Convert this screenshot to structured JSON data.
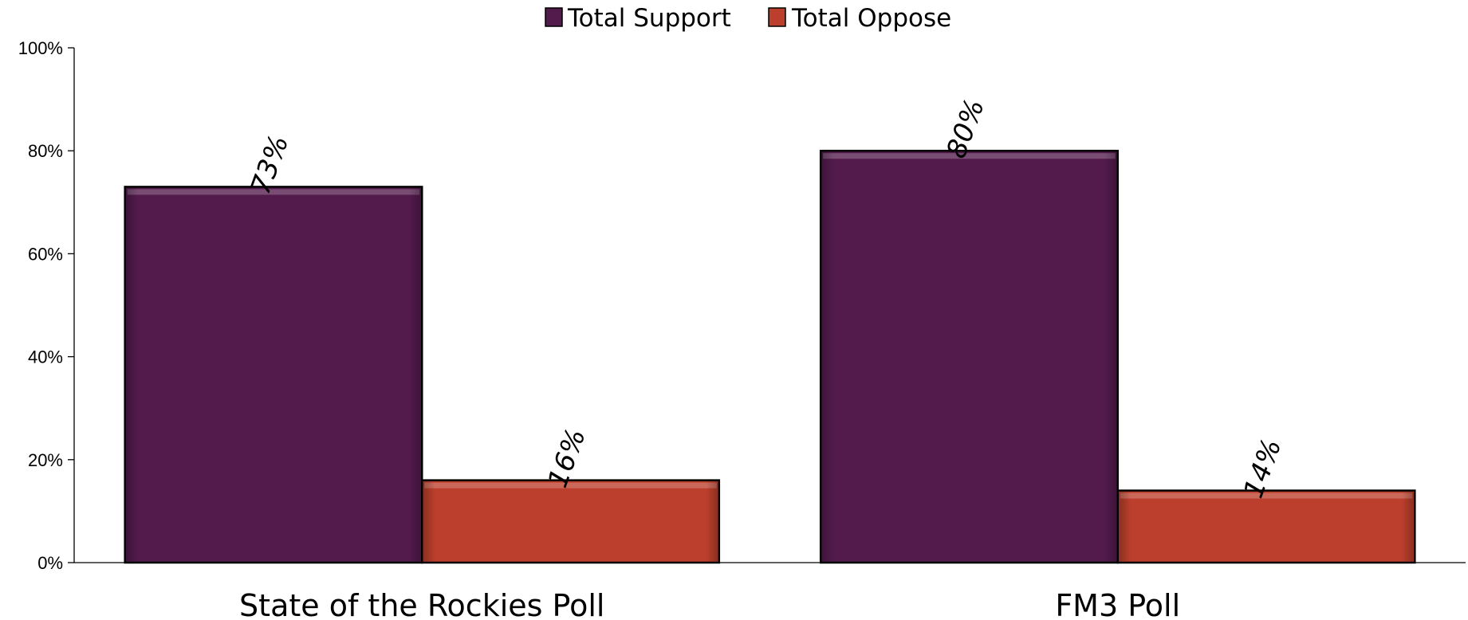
{
  "chart_data": {
    "type": "bar",
    "categories": [
      "State of the Rockies Poll",
      "FM3 Poll"
    ],
    "series": [
      {
        "name": "Total Support",
        "values": [
          73,
          80
        ],
        "color": "#531a4c",
        "label_values": [
          "73%",
          "80%"
        ]
      },
      {
        "name": "Total Oppose",
        "values": [
          16,
          14
        ],
        "color": "#bb3f2c",
        "label_values": [
          "16%",
          "14%"
        ]
      }
    ],
    "yticks": [
      "0%",
      "20%",
      "40%",
      "60%",
      "80%",
      "100%"
    ],
    "ylim": [
      0,
      100
    ],
    "grid": false,
    "legend_position": "top-center",
    "title": "",
    "xlabel": "",
    "ylabel": ""
  }
}
